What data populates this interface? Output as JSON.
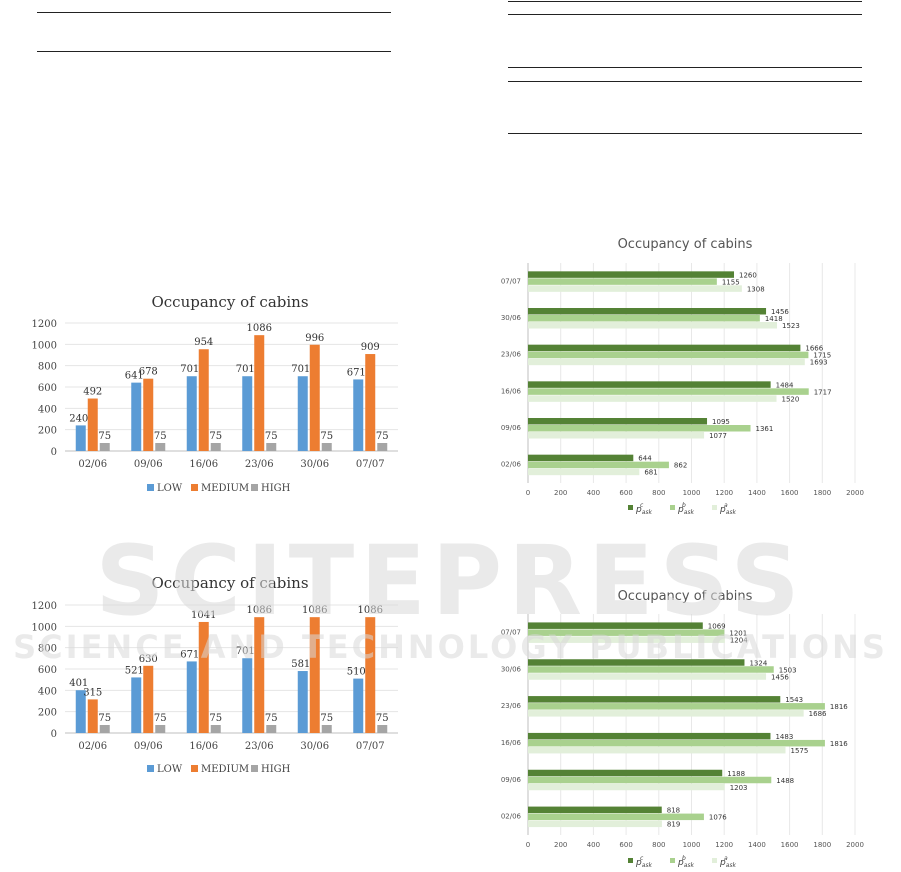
{
  "watermark": {
    "line1": "SCITEPRESS",
    "line2": "SCIENCE AND TECHNOLOGY PUBLICATIONS"
  },
  "colors": {
    "low": "#5b9bd5",
    "medium": "#ed7d31",
    "high": "#a5a5a5",
    "dark": "#548235",
    "mid": "#a9d18e",
    "light": "#e2efda"
  },
  "chart_data": [
    {
      "type": "bar",
      "title": "Occupancy of cabins",
      "categories": [
        "02/06",
        "09/06",
        "16/06",
        "23/06",
        "30/06",
        "07/07"
      ],
      "ylim": [
        0,
        1200
      ],
      "yticks": [
        0,
        200,
        400,
        600,
        800,
        1000,
        1200
      ],
      "series": [
        {
          "name": "LOW",
          "values": [
            240,
            641,
            701,
            701,
            701,
            671
          ]
        },
        {
          "name": "MEDIUM",
          "values": [
            492,
            678,
            954,
            1086,
            996,
            909
          ]
        },
        {
          "name": "HIGH",
          "values": [
            75,
            75,
            75,
            75,
            75,
            75
          ]
        }
      ]
    },
    {
      "type": "bar",
      "title": "Occupancy of cabins",
      "categories": [
        "02/06",
        "09/06",
        "16/06",
        "23/06",
        "30/06",
        "07/07"
      ],
      "ylim": [
        0,
        1200
      ],
      "yticks": [
        0,
        200,
        400,
        600,
        800,
        1000,
        1200
      ],
      "series": [
        {
          "name": "LOW",
          "values": [
            401,
            521,
            671,
            701,
            581,
            510
          ]
        },
        {
          "name": "MEDIUM",
          "values": [
            315,
            630,
            1041,
            1086,
            1086,
            1086
          ]
        },
        {
          "name": "HIGH",
          "values": [
            75,
            75,
            75,
            75,
            75,
            75
          ]
        }
      ]
    },
    {
      "type": "bar",
      "orientation": "horizontal",
      "title": "Occupancy of cabins",
      "categories": [
        "02/06",
        "09/06",
        "16/06",
        "23/06",
        "30/06",
        "07/07"
      ],
      "xlim": [
        0,
        2000
      ],
      "xticks": [
        0,
        200,
        400,
        600,
        800,
        1000,
        1200,
        1400,
        1600,
        1800,
        2000
      ],
      "series": [
        {
          "name": "p_ask^c",
          "values": [
            644,
            1095,
            1484,
            1666,
            1456,
            1260
          ]
        },
        {
          "name": "p_ask^b",
          "values": [
            862,
            1361,
            1717,
            1715,
            1418,
            1155
          ]
        },
        {
          "name": "p_ask^a",
          "values": [
            681,
            1077,
            1520,
            1693,
            1523,
            1308
          ]
        }
      ]
    },
    {
      "type": "bar",
      "orientation": "horizontal",
      "title": "Occupancy of cabins",
      "categories": [
        "02/06",
        "09/06",
        "16/06",
        "23/06",
        "30/06",
        "07/07"
      ],
      "xlim": [
        0,
        2000
      ],
      "xticks": [
        0,
        200,
        400,
        600,
        800,
        1000,
        1200,
        1400,
        1600,
        1800,
        2000
      ],
      "series": [
        {
          "name": "p_ask^c",
          "values": [
            818,
            1188,
            1483,
            1543,
            1324,
            1069
          ]
        },
        {
          "name": "p_ask^b",
          "values": [
            1076,
            1488,
            1816,
            1816,
            1503,
            1201
          ]
        },
        {
          "name": "p_ask^a",
          "values": [
            819,
            1203,
            1575,
            1686,
            1456,
            1204
          ]
        }
      ]
    }
  ]
}
